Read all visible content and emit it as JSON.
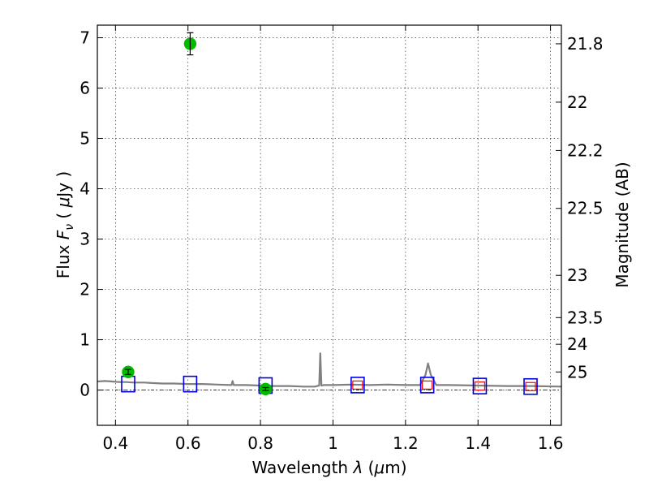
{
  "chart_data": {
    "type": "scatter",
    "xlabel": "Wavelength  λ (μm)",
    "ylabel": "Flux  Fν  ( μJy )",
    "ylabel_right": "Magnitude (AB)",
    "xlim": [
      0.35,
      1.63
    ],
    "ylim": [
      -0.7,
      7.25
    ],
    "xticks": [
      0.4,
      0.6,
      0.8,
      1.0,
      1.2,
      1.4,
      1.6
    ],
    "xtick_labels": [
      "0.4",
      "0.6",
      "0.8",
      "1",
      "1.2",
      "1.4",
      "1.6"
    ],
    "yticks": [
      0,
      1,
      2,
      3,
      4,
      5,
      6,
      7
    ],
    "ytick_labels": [
      "0",
      "1",
      "2",
      "3",
      "4",
      "5",
      "6",
      "7"
    ],
    "right_ticks": [
      {
        "label": "21.8",
        "flux": 6.88
      },
      {
        "label": "22",
        "flux": 5.72
      },
      {
        "label": "22.2",
        "flux": 4.76
      },
      {
        "label": "22.5",
        "flux": 3.61
      },
      {
        "label": "23",
        "flux": 2.28
      },
      {
        "label": "23.5",
        "flux": 1.44
      },
      {
        "label": "24",
        "flux": 0.91
      },
      {
        "label": "25",
        "flux": 0.36
      }
    ],
    "grid": true,
    "colors": {
      "observed": "#00bb00",
      "model_box": "#0000dd",
      "model_box_inner": "#ff0000",
      "spectrum": "#808080"
    },
    "series": [
      {
        "kind": "observed-with-errors",
        "points": [
          {
            "x": 0.435,
            "y": 0.36,
            "err": 0.05
          },
          {
            "x": 0.606,
            "y": 6.88,
            "err": 0.22
          },
          {
            "x": 0.814,
            "y": 0.02,
            "err": 0.03
          }
        ]
      },
      {
        "kind": "model-photometry",
        "points": [
          {
            "x": 0.435,
            "y": 0.12,
            "inner": false
          },
          {
            "x": 0.606,
            "y": 0.12,
            "inner": false
          },
          {
            "x": 0.814,
            "y": 0.09,
            "inner": false
          },
          {
            "x": 1.068,
            "y": 0.1,
            "inner": true
          },
          {
            "x": 1.26,
            "y": 0.1,
            "inner": true
          },
          {
            "x": 1.405,
            "y": 0.08,
            "inner": true
          },
          {
            "x": 1.545,
            "y": 0.07,
            "inner": true
          }
        ]
      },
      {
        "kind": "model-spectrum",
        "x": [
          0.35,
          0.37,
          0.39,
          0.41,
          0.43,
          0.45,
          0.48,
          0.5,
          0.53,
          0.56,
          0.6,
          0.64,
          0.68,
          0.72,
          0.723,
          0.726,
          0.729,
          0.76,
          0.8,
          0.84,
          0.88,
          0.92,
          0.95,
          0.962,
          0.965,
          0.968,
          0.975,
          1.0,
          1.05,
          1.1,
          1.15,
          1.2,
          1.24,
          1.255,
          1.262,
          1.27,
          1.285,
          1.32,
          1.4,
          1.48,
          1.55,
          1.63
        ],
        "y": [
          0.17,
          0.18,
          0.17,
          0.16,
          0.16,
          0.15,
          0.15,
          0.14,
          0.13,
          0.13,
          0.12,
          0.12,
          0.11,
          0.1,
          0.18,
          0.1,
          0.1,
          0.1,
          0.09,
          0.08,
          0.08,
          0.07,
          0.07,
          0.09,
          0.73,
          0.09,
          0.1,
          0.1,
          0.11,
          0.1,
          0.11,
          0.1,
          0.1,
          0.3,
          0.53,
          0.3,
          0.1,
          0.1,
          0.09,
          0.08,
          0.08,
          0.07
        ]
      }
    ]
  }
}
